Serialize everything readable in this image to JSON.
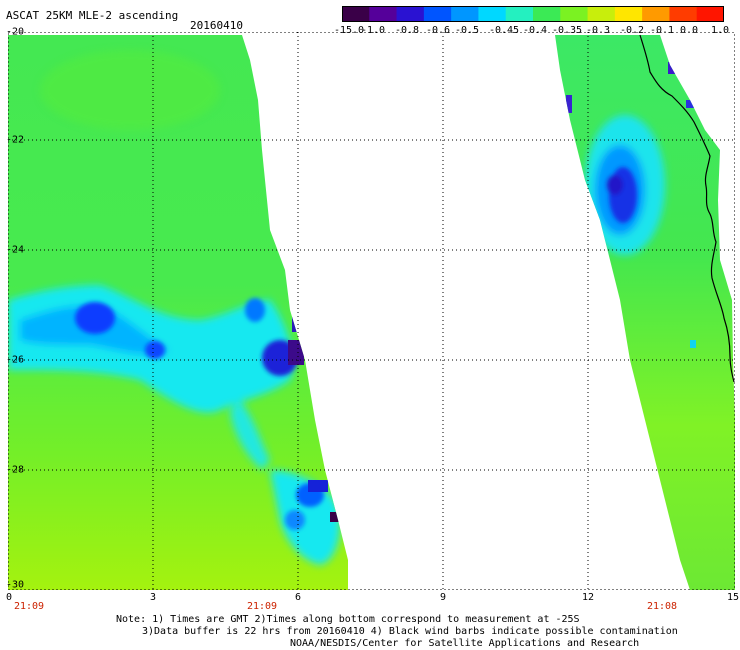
{
  "header": {
    "title": "ASCAT 25KM MLE-2 ascending",
    "date": "20160410"
  },
  "colorbar": {
    "labels": [
      "-15.0",
      "-1.0",
      "-0.8",
      "-0.6",
      "-0.5",
      "-0.45",
      "-0.4",
      "-0.35",
      "-0.3",
      "-0.2",
      "-0.1",
      "0.0",
      "1.0"
    ],
    "colors": [
      "#3a0048",
      "#55009a",
      "#2a12d2",
      "#0055ff",
      "#0096ff",
      "#00d8ff",
      "#24f0c0",
      "#3bea55",
      "#7bf222",
      "#c8ee0c",
      "#ffe600",
      "#ff9a00",
      "#ff3c00",
      "#ff1500"
    ]
  },
  "map": {
    "y_ticks": [
      "-20",
      "-22",
      "-24",
      "-26",
      "-28",
      "-30"
    ],
    "x_ticks": [
      "0",
      "3",
      "6",
      "9",
      "12",
      "15"
    ],
    "time_labels": [
      "21:09",
      "21:09",
      "21:08"
    ]
  },
  "notes": [
    "Note: 1) Times are GMT 2)Times along bottom correspond to measurement at -25S",
    "3)Data buffer is 22 hrs from 20160410 4) Black wind barbs indicate possible contamination",
    "NOAA/NESDIS/Center for Satellite Applications and Research"
  ]
}
